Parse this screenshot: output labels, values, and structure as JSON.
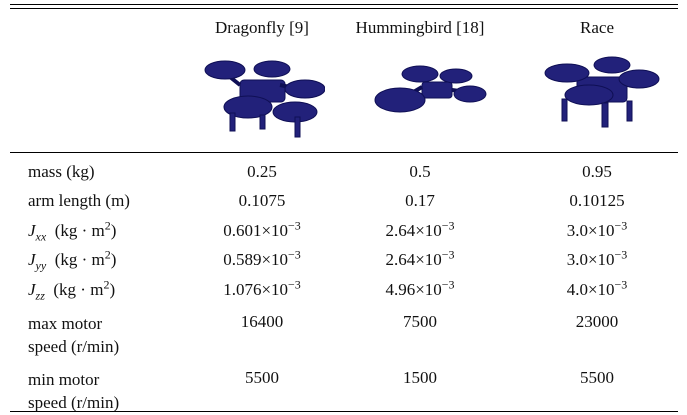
{
  "table": {
    "columns": [
      "Dragonfly [9]",
      "Hummingbird [18]",
      "Race"
    ],
    "rows": [
      {
        "label": "mass (kg)",
        "cells": [
          "0.25",
          "0.5",
          "0.95"
        ]
      },
      {
        "label": "arm length (m)",
        "cells": [
          "0.1075",
          "0.17",
          "0.10125"
        ]
      },
      {
        "label": {
          "symbol": "J",
          "sub": "xx",
          "unit": "(kg · m",
          "sup": "2",
          "close": ")"
        },
        "cells": [
          {
            "base": "0.601×10",
            "exp": "−3"
          },
          {
            "base": "2.64×10",
            "exp": "−3"
          },
          {
            "base": "3.0×10",
            "exp": "−3"
          }
        ]
      },
      {
        "label": {
          "symbol": "J",
          "sub": "yy",
          "unit": "(kg · m",
          "sup": "2",
          "close": ")"
        },
        "cells": [
          {
            "base": "0.589×10",
            "exp": "−3"
          },
          {
            "base": "2.64×10",
            "exp": "−3"
          },
          {
            "base": "3.0×10",
            "exp": "−3"
          }
        ]
      },
      {
        "label": {
          "symbol": "J",
          "sub": "zz",
          "unit": "(kg · m",
          "sup": "2",
          "close": ")"
        },
        "cells": [
          {
            "base": "1.076×10",
            "exp": "−3"
          },
          {
            "base": "4.96×10",
            "exp": "−3"
          },
          {
            "base": "4.0×10",
            "exp": "−3"
          }
        ]
      },
      {
        "label": [
          "max motor",
          "speed (r/min)"
        ],
        "cells": [
          "16400",
          "7500",
          "23000"
        ]
      },
      {
        "label": [
          "min motor",
          "speed (r/min)"
        ],
        "cells": [
          "5500",
          "1500",
          "5500"
        ]
      }
    ]
  }
}
